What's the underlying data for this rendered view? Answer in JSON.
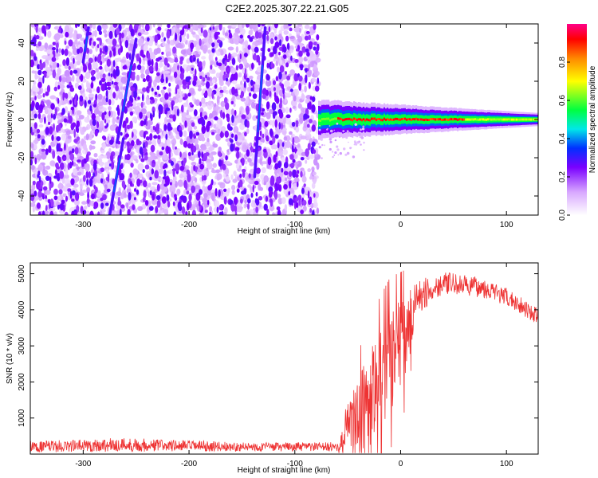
{
  "title": "C2E2.2025.307.22.21.G05",
  "colors": {
    "snr_line": "#ee3333",
    "frame": "#000000"
  },
  "chart_data": [
    {
      "type": "heatmap",
      "name": "spectrogram",
      "xlabel": "Height of straight line (km)",
      "ylabel": "Frequency (Hz)",
      "xlim": [
        -350,
        130
      ],
      "ylim": [
        -50,
        50
      ],
      "xticks": [
        -300,
        -200,
        -100,
        0,
        100
      ],
      "yticks": [
        -40,
        -20,
        0,
        20,
        40
      ],
      "colorbar": {
        "label": "Normalized spectral amplitude",
        "range": [
          0,
          1
        ],
        "ticks": [
          0.0,
          0.2,
          0.4,
          0.6,
          0.8
        ],
        "tick_labels": [
          "0.0",
          "0.2",
          "0.4",
          "0.6",
          "0.8"
        ],
        "stops": [
          {
            "v": 0.0,
            "c": "#ffffff"
          },
          {
            "v": 0.12,
            "c": "#d8a8ff"
          },
          {
            "v": 0.25,
            "c": "#7a00ff"
          },
          {
            "v": 0.35,
            "c": "#0030ff"
          },
          {
            "v": 0.45,
            "c": "#00e8e8"
          },
          {
            "v": 0.55,
            "c": "#00ff40"
          },
          {
            "v": 0.7,
            "c": "#ffff00"
          },
          {
            "v": 0.82,
            "c": "#ff8800"
          },
          {
            "v": 0.92,
            "c": "#ff0000"
          },
          {
            "v": 1.0,
            "c": "#ff0088"
          }
        ]
      },
      "noise_region_x": [
        -350,
        -78
      ],
      "streaks": [
        {
          "x": [
            -268,
            -250
          ],
          "y": [
            -12,
            42
          ]
        },
        {
          "x": [
            -138,
            -128
          ],
          "y": [
            -30,
            48
          ]
        },
        {
          "x": [
            -275,
            -262
          ],
          "y": [
            -50,
            -10
          ]
        },
        {
          "x": [
            -300,
            -295
          ],
          "y": [
            30,
            48
          ]
        }
      ],
      "carrier": {
        "x": [
          -78,
          130
        ],
        "center_hz": 0,
        "peak_x": [
          -60,
          60
        ],
        "halfwidth_hz": [
          6,
          2
        ]
      }
    },
    {
      "type": "line",
      "name": "snr",
      "xlabel": "Height of straight line (km)",
      "ylabel": "SNR (10 * v/v)",
      "xlim": [
        -350,
        130
      ],
      "ylim": [
        0,
        5300
      ],
      "xticks": [
        -300,
        -200,
        -100,
        0,
        100
      ],
      "yticks": [
        1000,
        2000,
        3000,
        4000,
        5000
      ],
      "profile": [
        {
          "x": -350,
          "base": 200,
          "noise": 150
        },
        {
          "x": -260,
          "base": 260,
          "noise": 200
        },
        {
          "x": -150,
          "base": 200,
          "noise": 120
        },
        {
          "x": -58,
          "base": 200,
          "noise": 130
        },
        {
          "x": -52,
          "base": 700,
          "noise": 600
        },
        {
          "x": -30,
          "base": 1500,
          "noise": 1400
        },
        {
          "x": -10,
          "base": 2500,
          "noise": 1500
        },
        {
          "x": 5,
          "base": 3200,
          "noise": 1200
        },
        {
          "x": 15,
          "base": 4300,
          "noise": 500
        },
        {
          "x": 40,
          "base": 4750,
          "noise": 300
        },
        {
          "x": 80,
          "base": 4600,
          "noise": 280
        },
        {
          "x": 110,
          "base": 4200,
          "noise": 250
        },
        {
          "x": 130,
          "base": 3800,
          "noise": 220
        }
      ]
    }
  ]
}
